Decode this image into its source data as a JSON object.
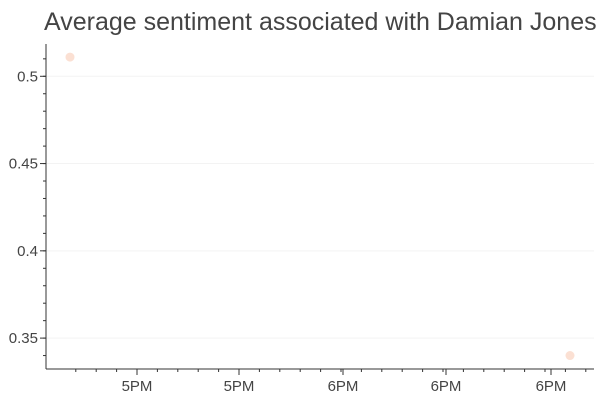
{
  "chart_data": {
    "type": "scatter",
    "title": "Average sentiment associated with Damian Jones",
    "xlabel": "",
    "ylabel": "",
    "x_tick_labels": [
      "5PM",
      "5PM",
      "6PM",
      "6PM",
      "6PM"
    ],
    "y_tick_labels": [
      "0.5",
      "0.45",
      "0.4",
      "0.35"
    ],
    "y_ticks": [
      0.5,
      0.45,
      0.4,
      0.35
    ],
    "ylim": [
      0.3323,
      0.5185
    ],
    "grid": "horizontal, faint",
    "point_color": "#f4a582",
    "series": [
      {
        "points": [
          {
            "x_position": 0.0,
            "y": 0.511
          },
          {
            "x_position": 1.0,
            "y": 0.34
          }
        ]
      }
    ]
  }
}
